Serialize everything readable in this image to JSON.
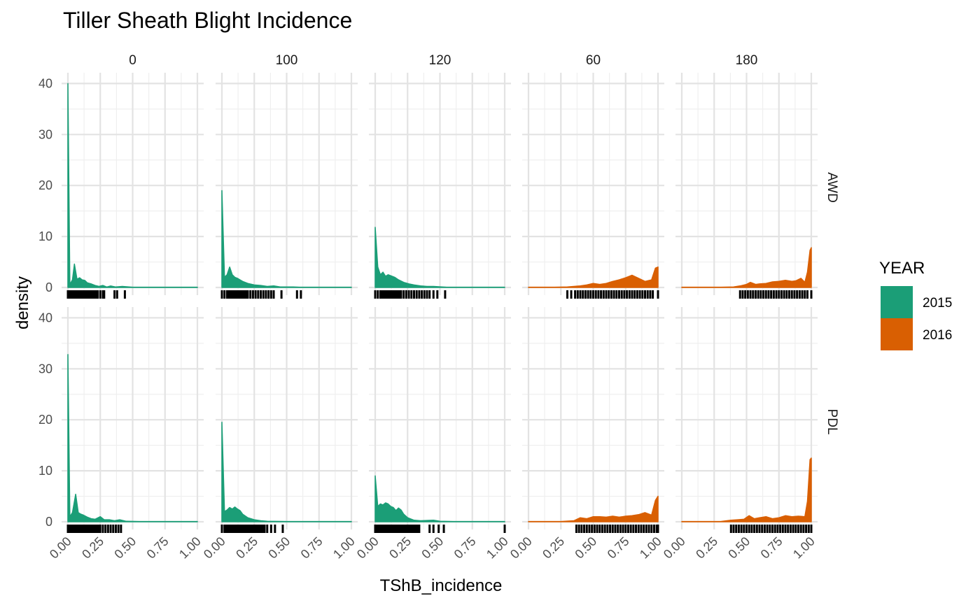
{
  "chart_data": {
    "type": "area",
    "title": "Tiller Sheath Blight Incidence",
    "xlabel": "TShB_incidence",
    "ylabel": "density",
    "xlim": [
      0,
      1
    ],
    "ylim": [
      0,
      40
    ],
    "x_ticks": [
      "0.00",
      "0.25",
      "0.50",
      "0.75",
      "1.00"
    ],
    "y_ticks": [
      "0",
      "10",
      "20",
      "30",
      "40"
    ],
    "grid": true,
    "columns": [
      "0",
      "100",
      "120",
      "60",
      "180"
    ],
    "rows": [
      "AWD",
      "PDL"
    ],
    "legend": {
      "title": "YEAR",
      "placement": "right",
      "entries": [
        {
          "label": "2015",
          "color": "#1b9e77"
        },
        {
          "label": "2016",
          "color": "#d95f02"
        }
      ]
    },
    "panels": [
      {
        "row": "AWD",
        "col": "0",
        "year": "2015",
        "density": [
          [
            0,
            40
          ],
          [
            0.015,
            0.6
          ],
          [
            0.035,
            1.5
          ],
          [
            0.05,
            4.6
          ],
          [
            0.07,
            1.6
          ],
          [
            0.09,
            1.9
          ],
          [
            0.11,
            1.5
          ],
          [
            0.13,
            1.4
          ],
          [
            0.15,
            0.9
          ],
          [
            0.18,
            0.7
          ],
          [
            0.21,
            0.4
          ],
          [
            0.24,
            0.2
          ],
          [
            0.27,
            0.4
          ],
          [
            0.3,
            0.1
          ],
          [
            0.33,
            0.3
          ],
          [
            0.37,
            0.1
          ],
          [
            0.42,
            0.2
          ],
          [
            0.5,
            0.05
          ],
          [
            0.7,
            0.05
          ],
          [
            1,
            0.05
          ]
        ],
        "rug": [
          0,
          0.01,
          0.02,
          0.03,
          0.04,
          0.05,
          0.06,
          0.07,
          0.08,
          0.09,
          0.1,
          0.11,
          0.12,
          0.13,
          0.14,
          0.15,
          0.16,
          0.17,
          0.18,
          0.19,
          0.2,
          0.21,
          0.22,
          0.23,
          0.25,
          0.27,
          0.28,
          0.36,
          0.38,
          0.44
        ]
      },
      {
        "row": "AWD",
        "col": "100",
        "year": "2015",
        "density": [
          [
            0,
            19
          ],
          [
            0.02,
            2
          ],
          [
            0.04,
            2.5
          ],
          [
            0.06,
            4
          ],
          [
            0.08,
            2.5
          ],
          [
            0.1,
            2
          ],
          [
            0.12,
            1.8
          ],
          [
            0.14,
            1.5
          ],
          [
            0.16,
            1.2
          ],
          [
            0.2,
            0.8
          ],
          [
            0.25,
            0.5
          ],
          [
            0.3,
            0.4
          ],
          [
            0.35,
            0.2
          ],
          [
            0.4,
            0.3
          ],
          [
            0.45,
            0.1
          ],
          [
            0.55,
            0.1
          ],
          [
            0.6,
            0.05
          ],
          [
            0.8,
            0.05
          ],
          [
            1,
            0.05
          ]
        ],
        "rug": [
          0,
          0.02,
          0.04,
          0.05,
          0.06,
          0.07,
          0.08,
          0.09,
          0.1,
          0.11,
          0.12,
          0.13,
          0.14,
          0.15,
          0.16,
          0.17,
          0.18,
          0.19,
          0.2,
          0.22,
          0.24,
          0.26,
          0.28,
          0.3,
          0.32,
          0.34,
          0.36,
          0.38,
          0.4,
          0.46,
          0.58,
          0.61
        ]
      },
      {
        "row": "AWD",
        "col": "120",
        "year": "2015",
        "density": [
          [
            0,
            11.8
          ],
          [
            0.02,
            4
          ],
          [
            0.04,
            2.5
          ],
          [
            0.06,
            3
          ],
          [
            0.08,
            2.2
          ],
          [
            0.1,
            2.5
          ],
          [
            0.12,
            2.3
          ],
          [
            0.15,
            2
          ],
          [
            0.18,
            1.5
          ],
          [
            0.22,
            1
          ],
          [
            0.26,
            0.7
          ],
          [
            0.3,
            0.5
          ],
          [
            0.35,
            0.3
          ],
          [
            0.4,
            0.2
          ],
          [
            0.45,
            0.2
          ],
          [
            0.55,
            0.05
          ],
          [
            0.8,
            0.05
          ],
          [
            1,
            0.05
          ]
        ],
        "rug": [
          0,
          0.02,
          0.04,
          0.05,
          0.06,
          0.07,
          0.08,
          0.09,
          0.1,
          0.11,
          0.12,
          0.13,
          0.14,
          0.15,
          0.16,
          0.17,
          0.18,
          0.19,
          0.2,
          0.22,
          0.24,
          0.26,
          0.28,
          0.3,
          0.32,
          0.34,
          0.36,
          0.38,
          0.4,
          0.42,
          0.45,
          0.48,
          0.54
        ]
      },
      {
        "row": "AWD",
        "col": "60",
        "year": "2016",
        "density": [
          [
            0,
            0.05
          ],
          [
            0.2,
            0.05
          ],
          [
            0.3,
            0.1
          ],
          [
            0.4,
            0.3
          ],
          [
            0.45,
            0.5
          ],
          [
            0.5,
            0.8
          ],
          [
            0.55,
            0.6
          ],
          [
            0.6,
            0.8
          ],
          [
            0.65,
            1.2
          ],
          [
            0.7,
            1.5
          ],
          [
            0.75,
            1.9
          ],
          [
            0.8,
            2.4
          ],
          [
            0.85,
            1.8
          ],
          [
            0.9,
            1.2
          ],
          [
            0.95,
            1.5
          ],
          [
            0.98,
            3.8
          ],
          [
            1,
            4
          ]
        ],
        "rug": [
          0.3,
          0.33,
          0.36,
          0.38,
          0.4,
          0.42,
          0.44,
          0.46,
          0.48,
          0.5,
          0.52,
          0.54,
          0.56,
          0.58,
          0.6,
          0.62,
          0.64,
          0.66,
          0.68,
          0.7,
          0.72,
          0.74,
          0.76,
          0.78,
          0.8,
          0.82,
          0.84,
          0.86,
          0.88,
          0.9,
          0.92,
          0.94,
          0.96,
          1
        ]
      },
      {
        "row": "AWD",
        "col": "180",
        "year": "2016",
        "density": [
          [
            0,
            0.05
          ],
          [
            0.3,
            0.05
          ],
          [
            0.4,
            0.1
          ],
          [
            0.45,
            0.3
          ],
          [
            0.5,
            0.6
          ],
          [
            0.53,
            1
          ],
          [
            0.57,
            0.6
          ],
          [
            0.6,
            0.7
          ],
          [
            0.65,
            0.8
          ],
          [
            0.7,
            1.1
          ],
          [
            0.75,
            1.2
          ],
          [
            0.8,
            1.4
          ],
          [
            0.85,
            1.2
          ],
          [
            0.88,
            1.3
          ],
          [
            0.92,
            1.8
          ],
          [
            0.95,
            1
          ],
          [
            0.97,
            3
          ],
          [
            0.99,
            7.3
          ],
          [
            1,
            7.8
          ]
        ],
        "rug": [
          0.45,
          0.47,
          0.49,
          0.51,
          0.53,
          0.55,
          0.57,
          0.59,
          0.61,
          0.63,
          0.65,
          0.67,
          0.69,
          0.71,
          0.73,
          0.75,
          0.77,
          0.79,
          0.81,
          0.83,
          0.85,
          0.87,
          0.89,
          0.91,
          0.93,
          0.95,
          0.97,
          1
        ]
      },
      {
        "row": "PDL",
        "col": "0",
        "year": "2015",
        "density": [
          [
            0,
            32.8
          ],
          [
            0.015,
            1
          ],
          [
            0.035,
            1.8
          ],
          [
            0.06,
            5.4
          ],
          [
            0.08,
            1.8
          ],
          [
            0.1,
            1.5
          ],
          [
            0.12,
            1.3
          ],
          [
            0.15,
            0.9
          ],
          [
            0.18,
            0.6
          ],
          [
            0.21,
            0.5
          ],
          [
            0.25,
            1
          ],
          [
            0.28,
            0.4
          ],
          [
            0.32,
            0.4
          ],
          [
            0.36,
            0.2
          ],
          [
            0.4,
            0.4
          ],
          [
            0.45,
            0.1
          ],
          [
            0.55,
            0.05
          ],
          [
            1,
            0.05
          ]
        ],
        "rug": [
          0,
          0.01,
          0.02,
          0.03,
          0.04,
          0.05,
          0.06,
          0.07,
          0.08,
          0.09,
          0.1,
          0.11,
          0.12,
          0.13,
          0.14,
          0.15,
          0.16,
          0.17,
          0.18,
          0.19,
          0.2,
          0.21,
          0.22,
          0.23,
          0.24,
          0.25,
          0.27,
          0.29,
          0.31,
          0.33,
          0.35,
          0.37,
          0.39,
          0.41
        ]
      },
      {
        "row": "PDL",
        "col": "100",
        "year": "2015",
        "density": [
          [
            0,
            19.5
          ],
          [
            0.02,
            2
          ],
          [
            0.04,
            2.3
          ],
          [
            0.06,
            2.8
          ],
          [
            0.08,
            2.5
          ],
          [
            0.1,
            2.9
          ],
          [
            0.12,
            2.5
          ],
          [
            0.14,
            2.2
          ],
          [
            0.16,
            1.5
          ],
          [
            0.2,
            0.8
          ],
          [
            0.25,
            0.4
          ],
          [
            0.3,
            0.2
          ],
          [
            0.35,
            0.1
          ],
          [
            0.5,
            0.05
          ],
          [
            1,
            0.05
          ]
        ],
        "rug": [
          0,
          0.02,
          0.03,
          0.04,
          0.05,
          0.06,
          0.07,
          0.08,
          0.09,
          0.1,
          0.11,
          0.12,
          0.13,
          0.14,
          0.15,
          0.16,
          0.17,
          0.18,
          0.19,
          0.2,
          0.21,
          0.22,
          0.23,
          0.24,
          0.25,
          0.26,
          0.27,
          0.28,
          0.29,
          0.3,
          0.31,
          0.32,
          0.33,
          0.35,
          0.38,
          0.41,
          0.47
        ]
      },
      {
        "row": "PDL",
        "col": "120",
        "year": "2015",
        "density": [
          [
            0,
            9
          ],
          [
            0.02,
            3
          ],
          [
            0.04,
            3.5
          ],
          [
            0.06,
            3.3
          ],
          [
            0.08,
            3.7
          ],
          [
            0.1,
            3.5
          ],
          [
            0.12,
            3
          ],
          [
            0.14,
            2.8
          ],
          [
            0.16,
            2.2
          ],
          [
            0.18,
            2.7
          ],
          [
            0.2,
            2.3
          ],
          [
            0.22,
            1.5
          ],
          [
            0.25,
            0.8
          ],
          [
            0.3,
            0.3
          ],
          [
            0.35,
            0.2
          ],
          [
            0.45,
            0.3
          ],
          [
            0.5,
            0.1
          ],
          [
            0.6,
            0.05
          ],
          [
            1,
            0.05
          ]
        ],
        "rug": [
          0,
          0.01,
          0.02,
          0.03,
          0.04,
          0.05,
          0.06,
          0.07,
          0.08,
          0.09,
          0.1,
          0.11,
          0.12,
          0.13,
          0.14,
          0.15,
          0.16,
          0.17,
          0.18,
          0.19,
          0.2,
          0.21,
          0.22,
          0.23,
          0.24,
          0.25,
          0.26,
          0.27,
          0.28,
          0.29,
          0.3,
          0.31,
          0.32,
          0.33,
          0.34,
          0.42,
          0.45,
          0.49,
          0.53,
          1
        ]
      },
      {
        "row": "PDL",
        "col": "60",
        "year": "2016",
        "density": [
          [
            0,
            0.05
          ],
          [
            0.25,
            0.05
          ],
          [
            0.35,
            0.2
          ],
          [
            0.4,
            0.8
          ],
          [
            0.45,
            0.6
          ],
          [
            0.5,
            1
          ],
          [
            0.55,
            1
          ],
          [
            0.6,
            0.9
          ],
          [
            0.65,
            1.1
          ],
          [
            0.7,
            0.9
          ],
          [
            0.75,
            1.1
          ],
          [
            0.8,
            1.2
          ],
          [
            0.85,
            1.4
          ],
          [
            0.9,
            1.8
          ],
          [
            0.95,
            1.3
          ],
          [
            0.98,
            4.2
          ],
          [
            1,
            5
          ]
        ],
        "rug": [
          0.37,
          0.39,
          0.41,
          0.43,
          0.45,
          0.47,
          0.49,
          0.51,
          0.53,
          0.55,
          0.57,
          0.59,
          0.61,
          0.63,
          0.65,
          0.67,
          0.69,
          0.71,
          0.73,
          0.75,
          0.77,
          0.79,
          0.81,
          0.83,
          0.85,
          0.87,
          0.89,
          0.91,
          0.93,
          0.95,
          0.97,
          0.99,
          1
        ]
      },
      {
        "row": "PDL",
        "col": "180",
        "year": "2016",
        "density": [
          [
            0,
            0.05
          ],
          [
            0.3,
            0.05
          ],
          [
            0.38,
            0.3
          ],
          [
            0.43,
            0.4
          ],
          [
            0.48,
            0.5
          ],
          [
            0.52,
            1.2
          ],
          [
            0.56,
            0.6
          ],
          [
            0.6,
            0.8
          ],
          [
            0.65,
            1
          ],
          [
            0.7,
            0.6
          ],
          [
            0.75,
            0.8
          ],
          [
            0.8,
            1.2
          ],
          [
            0.85,
            1
          ],
          [
            0.9,
            1.1
          ],
          [
            0.95,
            1
          ],
          [
            0.97,
            4
          ],
          [
            0.99,
            12.2
          ],
          [
            1,
            12.5
          ]
        ],
        "rug": [
          0.38,
          0.4,
          0.42,
          0.44,
          0.46,
          0.48,
          0.5,
          0.52,
          0.54,
          0.56,
          0.58,
          0.6,
          0.62,
          0.64,
          0.66,
          0.68,
          0.7,
          0.72,
          0.74,
          0.76,
          0.78,
          0.8,
          0.82,
          0.84,
          0.86,
          0.88,
          0.9,
          0.92,
          0.94,
          0.96,
          0.98,
          1
        ]
      }
    ]
  }
}
